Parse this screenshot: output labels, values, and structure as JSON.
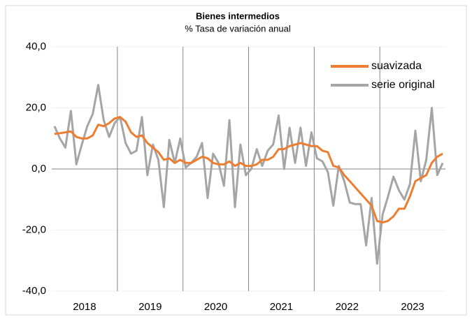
{
  "chart_data": {
    "type": "line",
    "title": "Bienes  intermedios",
    "subtitle": "% Tasa de variación anual",
    "categories": [
      null,
      null,
      null,
      null,
      null,
      null,
      "2018",
      null,
      null,
      null,
      null,
      null,
      null,
      null,
      null,
      null,
      null,
      null,
      "2019",
      null,
      null,
      null,
      null,
      null,
      null,
      null,
      null,
      null,
      null,
      null,
      "2020",
      null,
      null,
      null,
      null,
      null,
      null,
      null,
      null,
      null,
      null,
      null,
      "2021",
      null,
      null,
      null,
      null,
      null,
      null,
      null,
      null,
      null,
      null,
      null,
      "2022",
      null,
      null,
      null,
      null,
      null,
      null,
      null,
      null,
      null,
      null,
      null,
      "2023",
      null,
      null,
      null,
      null,
      null
    ],
    "series": [
      {
        "name": "suavizada",
        "color": "#ed7d31",
        "values": [
          11.5,
          11.7,
          12,
          12.3,
          10.5,
          10,
          10,
          11,
          14.5,
          14,
          15,
          16.5,
          17,
          15.5,
          12,
          10.5,
          11,
          8.5,
          7,
          5.5,
          3,
          3.5,
          2,
          3,
          2,
          2,
          3,
          4,
          3.5,
          2,
          1.5,
          1.5,
          2.5,
          1,
          2,
          1,
          1,
          1.5,
          3,
          3,
          4,
          6.5,
          6.5,
          7.5,
          8,
          8.5,
          8,
          7.5,
          7.5,
          6,
          5.5,
          1,
          0.5,
          -2,
          -4,
          -6,
          -8,
          -10,
          -12,
          -17,
          -17.5,
          -17,
          -15.5,
          -13,
          -13,
          -9,
          -4,
          -3,
          -2,
          2,
          4,
          5
        ]
      },
      {
        "name": "serie original",
        "color": "#a5a5a5",
        "values": [
          14,
          10,
          7,
          19,
          1.5,
          8,
          14,
          18,
          27.5,
          16,
          10.5,
          15,
          17,
          8.5,
          5,
          6,
          17,
          -2,
          8,
          3,
          -12.5,
          9.5,
          2,
          10,
          0.5,
          2,
          4,
          8.5,
          -9.5,
          5,
          2,
          -5.5,
          16,
          -12.5,
          8,
          -2,
          0,
          6.5,
          1,
          6,
          8,
          17.5,
          0,
          13.5,
          2,
          13.5,
          1,
          12,
          3.5,
          2.5,
          -1,
          -12,
          1,
          -4,
          -11,
          -11.5,
          -11.5,
          -25,
          -9.5,
          -31,
          -15,
          -9,
          -2.5,
          -7,
          -10,
          -5,
          12.5,
          -4,
          3,
          20,
          -2,
          2
        ]
      }
    ],
    "ylim": [
      -40,
      40
    ],
    "yticks": [
      {
        "value": -40,
        "label": "-40,0"
      },
      {
        "value": -20,
        "label": "-20,0"
      },
      {
        "value": 0,
        "label": "0,0"
      },
      {
        "value": 20,
        "label": "20,0"
      },
      {
        "value": 40,
        "label": "40,0"
      }
    ],
    "grid": true,
    "legend": "top-right"
  }
}
